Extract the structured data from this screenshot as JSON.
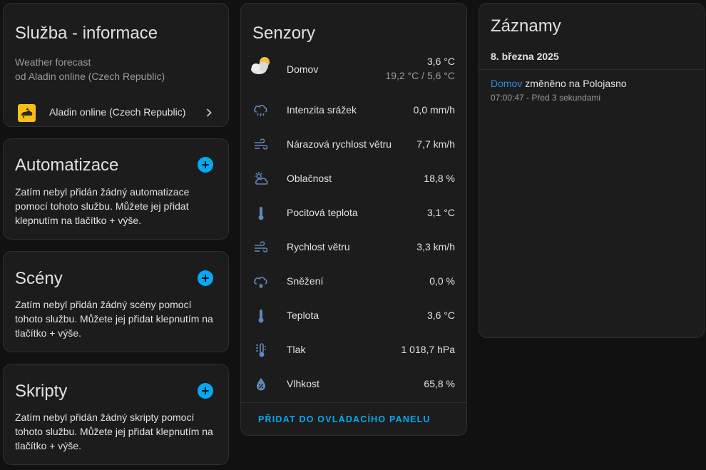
{
  "info": {
    "title": "Služba - informace",
    "desc_line1": "Weather forecast",
    "desc_line2": "od Aladin online (Czech Republic)",
    "integration_label": "Aladin online (Czech Republic)"
  },
  "automations": {
    "title": "Automatizace",
    "text": "Zatím nebyl přidán žádný automatizace pomocí tohoto službu. Můžete jej přidat klepnutím na tlačítko + výše."
  },
  "scenes": {
    "title": "Scény",
    "text": "Zatím nebyl přidán žádný scény pomocí tohoto službu. Můžete jej přidat klepnutím na tlačítko + výše."
  },
  "scripts": {
    "title": "Skripty",
    "text": "Zatím nebyl přidán žádný skripty pomocí tohoto službu. Můžete jej přidat klepnutím na tlačítko + výše."
  },
  "sensors": {
    "title": "Senzory",
    "items": [
      {
        "name": "Domov",
        "value": "3,6 °C",
        "sub": "19,2 °C / 5,6 °C",
        "icon": "partly-cloudy-icon"
      },
      {
        "name": "Intenzita srážek",
        "value": "0,0 mm/h",
        "icon": "weather-pouring-icon"
      },
      {
        "name": "Nárazová rychlost větru",
        "value": "7,7 km/h",
        "icon": "weather-windy-icon"
      },
      {
        "name": "Oblačnost",
        "value": "18,8 %",
        "icon": "weather-partly-cloudy-outline-icon"
      },
      {
        "name": "Pocitová teplota",
        "value": "3,1 °C",
        "icon": "thermometer-icon"
      },
      {
        "name": "Rychlost větru",
        "value": "3,3 km/h",
        "icon": "weather-windy-icon"
      },
      {
        "name": "Sněžení",
        "value": "0,0 %",
        "icon": "weather-snowy-icon"
      },
      {
        "name": "Teplota",
        "value": "3,6 °C",
        "icon": "thermometer-icon"
      },
      {
        "name": "Tlak",
        "value": "1 018,7 hPa",
        "icon": "gauge-thermometer-icon"
      },
      {
        "name": "Vlhkost",
        "value": "65,8 %",
        "icon": "water-percent-icon"
      }
    ],
    "add_label": "PŘIDAT DO OVLÁDACÍHO PANELU"
  },
  "logbook": {
    "title": "Záznamy",
    "date": "8. března 2025",
    "entry_entity": "Domov",
    "entry_text": " změněno na Polojasno",
    "entry_meta": "07:00:47 - Před 3 sekundami"
  },
  "colors": {
    "background": "#111111",
    "card": "#1c1c1c",
    "accent": "#03a9f4",
    "link": "#2c8de0",
    "icon": "#5f88b6"
  }
}
